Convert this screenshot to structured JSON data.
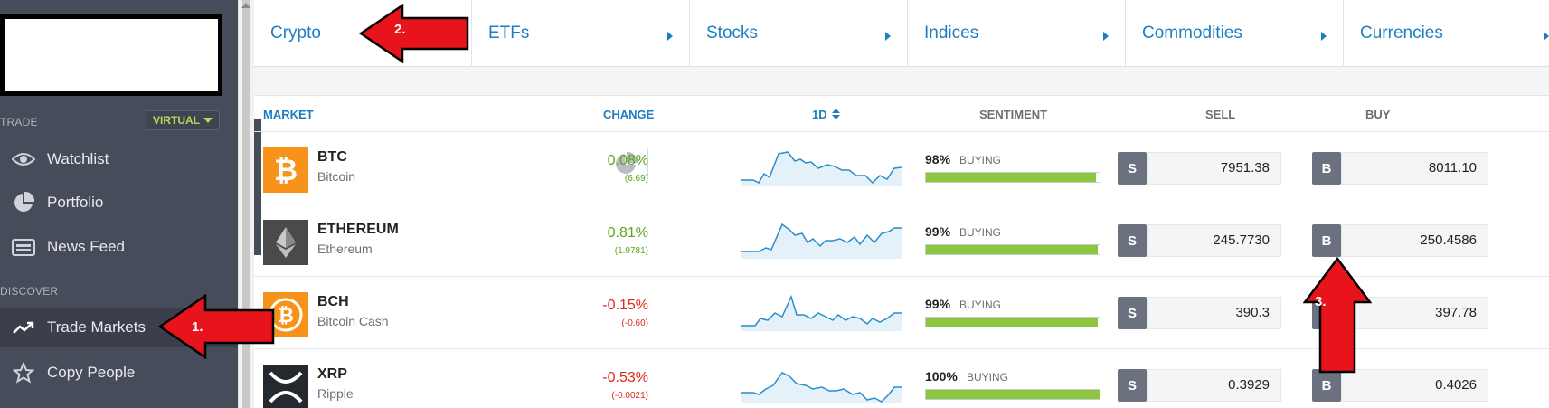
{
  "sidebar": {
    "sections": {
      "trade": "TRADE",
      "discover": "DISCOVER"
    },
    "virtual_label": "VIRTUAL",
    "items": [
      {
        "label": "Watchlist",
        "icon": "eye-icon"
      },
      {
        "label": "Portfolio",
        "icon": "pie-chart-icon"
      },
      {
        "label": "News Feed",
        "icon": "news-icon"
      },
      {
        "label": "Trade Markets",
        "icon": "trend-icon",
        "active": true
      },
      {
        "label": "Copy People",
        "icon": "star-icon"
      }
    ]
  },
  "tabs": [
    "Crypto",
    "ETFs",
    "Stocks",
    "Indices",
    "Commodities",
    "Currencies"
  ],
  "header": {
    "market": "MARKET",
    "change": "CHANGE",
    "period": "1D",
    "sentiment": "SENTIMENT",
    "sell": "SELL",
    "buy": "BUY"
  },
  "rows": [
    {
      "symbol": "BTC",
      "name": "Bitcoin",
      "change": "0.08%",
      "change_abs": "(6.69)",
      "direction": "up",
      "sentiment_pct": "98%",
      "sentiment_fill": 0.98,
      "sentiment_label": "BUYING",
      "sell": "7951.38",
      "buy": "8011.10",
      "icon_color": "#f7931a"
    },
    {
      "symbol": "ETHEREUM",
      "name": "Ethereum",
      "change": "0.81%",
      "change_abs": "(1.9781)",
      "direction": "up",
      "sentiment_pct": "99%",
      "sentiment_fill": 0.99,
      "sentiment_label": "BUYING",
      "sell": "245.7730",
      "buy": "250.4586",
      "icon_color": "#4a4a4a"
    },
    {
      "symbol": "BCH",
      "name": "Bitcoin Cash",
      "change": "-0.15%",
      "change_abs": "(-0.60)",
      "direction": "down",
      "sentiment_pct": "99%",
      "sentiment_fill": 0.99,
      "sentiment_label": "BUYING",
      "sell": "390.3",
      "buy": "397.78",
      "icon_color": "#f7931a"
    },
    {
      "symbol": "XRP",
      "name": "Ripple",
      "change": "-0.53%",
      "change_abs": "(-0.0021)",
      "direction": "down",
      "sentiment_pct": "100%",
      "sentiment_fill": 1.0,
      "sentiment_label": "BUYING",
      "sell": "0.3929",
      "buy": "0.4026",
      "icon_color": "#23292f"
    }
  ],
  "buttons": {
    "sell": "S",
    "buy": "B"
  },
  "annotations": [
    "1.",
    "2.",
    "3."
  ],
  "colors": {
    "accent": "#1d7ec1",
    "up": "#5aa51a",
    "down": "#e0281e",
    "sentiment": "#8cc63e",
    "sidebar": "#474c5a",
    "arrow": "#e8141b"
  }
}
